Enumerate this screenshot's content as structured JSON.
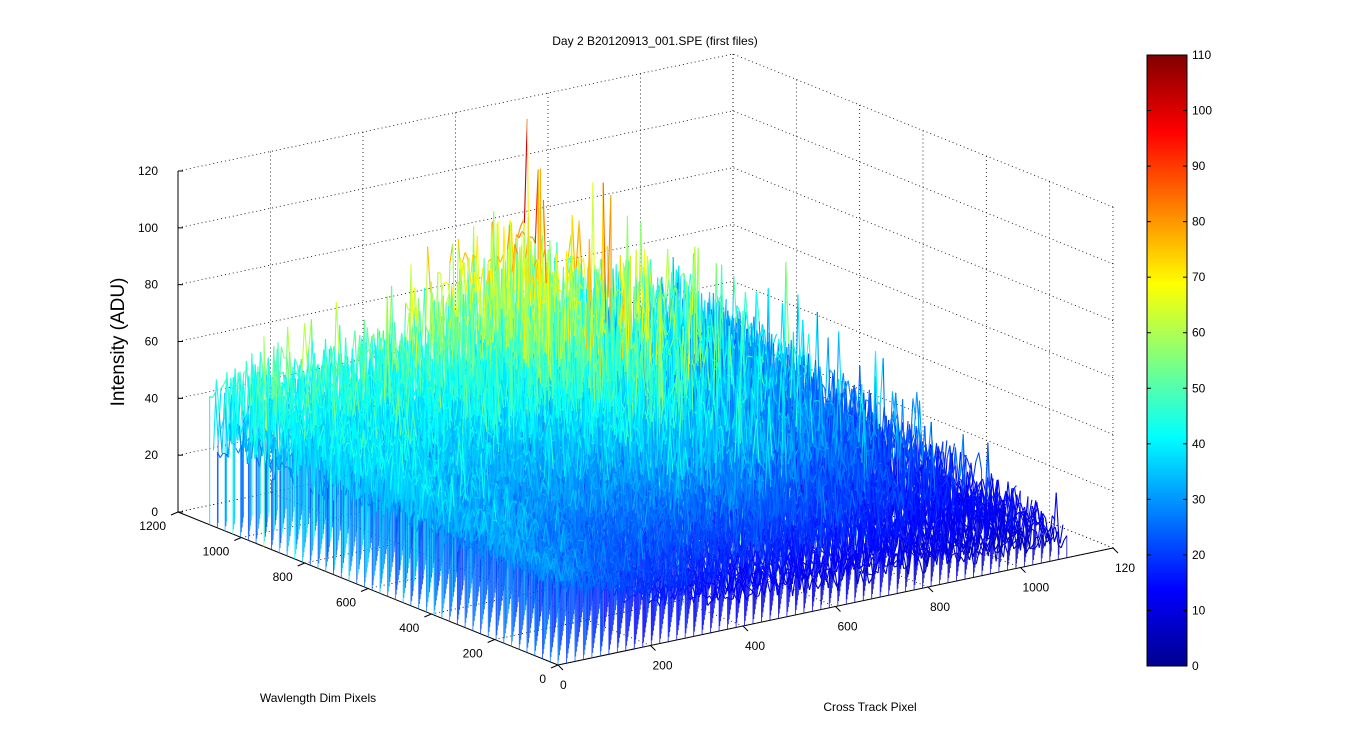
{
  "chart_data": {
    "type": "surface",
    "title": "Day 2  B20120913_001.SPE (first files)",
    "xlabel": "Cross Track Pixel",
    "ylabel": "Wavlength Dim Pixels",
    "zlabel": "Intensity (ADU)",
    "x_ticks": [
      "0",
      "200",
      "400",
      "600",
      "800",
      "1000",
      "120"
    ],
    "y_ticks": [
      "0",
      "200",
      "400",
      "600",
      "800",
      "1000",
      "1200"
    ],
    "z_ticks": [
      "0",
      "20",
      "40",
      "60",
      "80",
      "100",
      "120"
    ],
    "xlim": [
      0,
      1200
    ],
    "ylim": [
      0,
      1200
    ],
    "zlim": [
      0,
      120
    ],
    "data_extent": {
      "x": [
        0,
        1100
      ],
      "y": [
        0,
        1100
      ]
    },
    "colormap": "jet",
    "colorbar": {
      "ticks": [
        "0",
        "10",
        "20",
        "30",
        "40",
        "50",
        "60",
        "70",
        "80",
        "90",
        "100",
        "110"
      ],
      "clim": [
        0,
        110
      ]
    },
    "grid": true,
    "surface_profile": {
      "description_free_values_only": true,
      "x_samples": [
        0,
        200,
        400,
        600,
        800,
        1000,
        1100
      ],
      "mean_intensity_near_y_max": [
        40,
        42,
        45,
        55,
        40,
        30,
        25
      ],
      "peak_intensity_near_y_max": [
        60,
        62,
        68,
        110,
        85,
        70,
        50
      ],
      "mean_intensity_near_y_min": [
        30,
        18,
        12,
        10,
        10,
        8,
        8
      ]
    }
  }
}
